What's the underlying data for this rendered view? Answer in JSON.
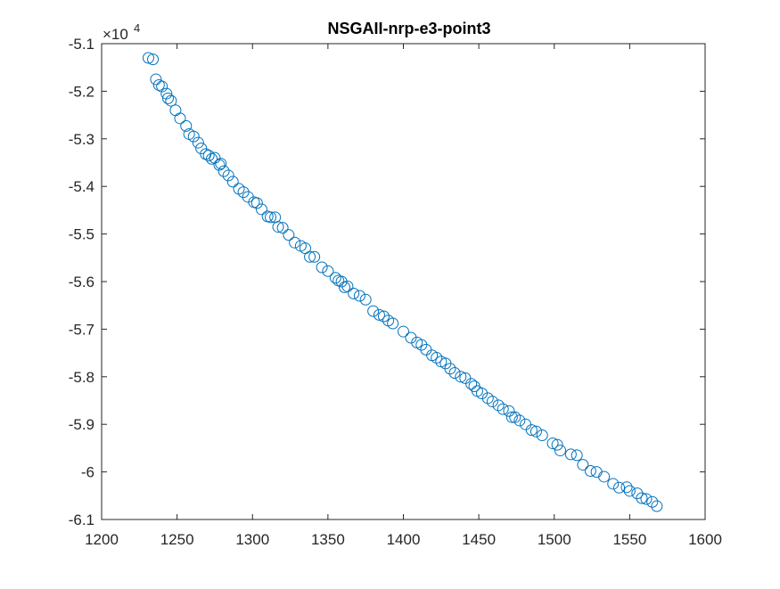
{
  "window": {
    "background": "#ffffff"
  },
  "chart_data": {
    "type": "scatter",
    "title": "NSGAII-nrp-e3-point3",
    "xlabel": "",
    "ylabel": "",
    "xlim": [
      1200,
      1600
    ],
    "ylim": [
      -61000,
      -51000
    ],
    "x_ticks": [
      1200,
      1250,
      1300,
      1350,
      1400,
      1450,
      1500,
      1550,
      1600
    ],
    "x_tick_labels": [
      "1200",
      "1250",
      "1300",
      "1350",
      "1400",
      "1450",
      "1500",
      "1550",
      "1600"
    ],
    "y_ticks": [
      -51000,
      -52000,
      -53000,
      -54000,
      -55000,
      -56000,
      -57000,
      -58000,
      -59000,
      -60000,
      -61000
    ],
    "y_tick_labels": [
      "-5.1",
      "-5.2",
      "-5.3",
      "-5.4",
      "-5.5",
      "-5.6",
      "-5.7",
      "-5.8",
      "-5.9",
      "-6",
      "-6.1"
    ],
    "y_exponent": {
      "base": "×10",
      "power": "4"
    },
    "grid": false,
    "legend": "none",
    "marker": "circle-open",
    "marker_color": "#0072bd",
    "series": [
      {
        "points": [
          [
            1231,
            -51300
          ],
          [
            1234,
            -51330
          ],
          [
            1236,
            -51750
          ],
          [
            1238,
            -51870
          ],
          [
            1240,
            -51900
          ],
          [
            1243,
            -52050
          ],
          [
            1244,
            -52150
          ],
          [
            1246,
            -52200
          ],
          [
            1249,
            -52400
          ],
          [
            1252,
            -52570
          ],
          [
            1256,
            -52730
          ],
          [
            1258,
            -52900
          ],
          [
            1261,
            -52950
          ],
          [
            1264,
            -53080
          ],
          [
            1266,
            -53200
          ],
          [
            1269,
            -53320
          ],
          [
            1271,
            -53350
          ],
          [
            1273,
            -53420
          ],
          [
            1275,
            -53400
          ],
          [
            1278,
            -53550
          ],
          [
            1279,
            -53520
          ],
          [
            1281,
            -53680
          ],
          [
            1284,
            -53770
          ],
          [
            1287,
            -53900
          ],
          [
            1291,
            -54050
          ],
          [
            1294,
            -54120
          ],
          [
            1297,
            -54220
          ],
          [
            1301,
            -54330
          ],
          [
            1303,
            -54350
          ],
          [
            1306,
            -54480
          ],
          [
            1310,
            -54630
          ],
          [
            1312,
            -54650
          ],
          [
            1315,
            -54650
          ],
          [
            1317,
            -54850
          ],
          [
            1320,
            -54870
          ],
          [
            1324,
            -55020
          ],
          [
            1328,
            -55180
          ],
          [
            1332,
            -55250
          ],
          [
            1335,
            -55300
          ],
          [
            1338,
            -55480
          ],
          [
            1341,
            -55480
          ],
          [
            1346,
            -55700
          ],
          [
            1350,
            -55780
          ],
          [
            1355,
            -55920
          ],
          [
            1357,
            -55980
          ],
          [
            1359,
            -56000
          ],
          [
            1361,
            -56120
          ],
          [
            1363,
            -56100
          ],
          [
            1367,
            -56250
          ],
          [
            1371,
            -56300
          ],
          [
            1375,
            -56380
          ],
          [
            1380,
            -56620
          ],
          [
            1384,
            -56700
          ],
          [
            1387,
            -56730
          ],
          [
            1390,
            -56820
          ],
          [
            1393,
            -56880
          ],
          [
            1400,
            -57050
          ],
          [
            1405,
            -57180
          ],
          [
            1409,
            -57280
          ],
          [
            1412,
            -57330
          ],
          [
            1415,
            -57430
          ],
          [
            1419,
            -57550
          ],
          [
            1422,
            -57600
          ],
          [
            1425,
            -57680
          ],
          [
            1428,
            -57720
          ],
          [
            1431,
            -57830
          ],
          [
            1434,
            -57920
          ],
          [
            1438,
            -58000
          ],
          [
            1441,
            -58030
          ],
          [
            1445,
            -58150
          ],
          [
            1447,
            -58200
          ],
          [
            1449,
            -58300
          ],
          [
            1452,
            -58350
          ],
          [
            1456,
            -58450
          ],
          [
            1459,
            -58520
          ],
          [
            1463,
            -58600
          ],
          [
            1466,
            -58680
          ],
          [
            1470,
            -58720
          ],
          [
            1472,
            -58850
          ],
          [
            1474,
            -58850
          ],
          [
            1477,
            -58920
          ],
          [
            1481,
            -59000
          ],
          [
            1485,
            -59120
          ],
          [
            1488,
            -59150
          ],
          [
            1492,
            -59230
          ],
          [
            1499,
            -59400
          ],
          [
            1502,
            -59430
          ],
          [
            1504,
            -59550
          ],
          [
            1511,
            -59630
          ],
          [
            1515,
            -59650
          ],
          [
            1519,
            -59850
          ],
          [
            1524,
            -59980
          ],
          [
            1528,
            -60000
          ],
          [
            1533,
            -60100
          ],
          [
            1539,
            -60250
          ],
          [
            1543,
            -60330
          ],
          [
            1548,
            -60320
          ],
          [
            1550,
            -60400
          ],
          [
            1555,
            -60450
          ],
          [
            1558,
            -60550
          ],
          [
            1561,
            -60570
          ],
          [
            1565,
            -60630
          ],
          [
            1568,
            -60720
          ]
        ]
      }
    ]
  }
}
